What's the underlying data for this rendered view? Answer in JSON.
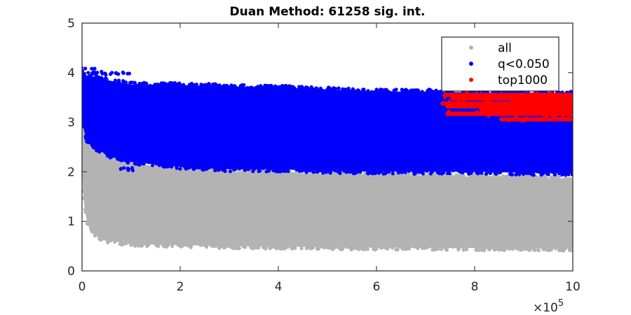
{
  "chart_data": {
    "type": "scatter",
    "title": "Duan Method: 61258 sig. int.",
    "xlabel": "",
    "ylabel": "",
    "x_exponent_label": "×10",
    "x_exponent_power": "5",
    "xlim": [
      0,
      10
    ],
    "ylim": [
      0,
      5
    ],
    "x_ticks": [
      "0",
      "2",
      "4",
      "6",
      "8",
      "10"
    ],
    "y_ticks": [
      "0",
      "1",
      "2",
      "3",
      "4",
      "5"
    ],
    "x_tick_values": [
      0,
      2,
      4,
      6,
      8,
      10
    ],
    "y_tick_values": [
      0,
      1,
      2,
      3,
      4,
      5
    ],
    "grid": false,
    "legend_position": "top-right",
    "series": [
      {
        "name": "all",
        "color": "#b3b3b3",
        "band": {
          "x": [
            0.0,
            0.02,
            0.05,
            0.1,
            0.2,
            0.3,
            0.5,
            0.8,
            1.0,
            1.5,
            2.0,
            3.0,
            4.0,
            5.0,
            6.0,
            7.0,
            8.0,
            9.0,
            10.0
          ],
          "lower": [
            2.1,
            1.6,
            1.3,
            1.0,
            0.8,
            0.7,
            0.62,
            0.57,
            0.55,
            0.53,
            0.52,
            0.5,
            0.49,
            0.48,
            0.47,
            0.47,
            0.46,
            0.46,
            0.45
          ],
          "upper": [
            3.8,
            3.4,
            3.0,
            2.7,
            2.55,
            2.45,
            2.35,
            2.25,
            2.2,
            2.1,
            2.05,
            2.0,
            1.98,
            1.96,
            1.94,
            1.92,
            1.9,
            1.88,
            1.86
          ]
        }
      },
      {
        "name": "q<0.050",
        "color": "#0000ff",
        "band": {
          "x": [
            0.0,
            0.05,
            0.1,
            0.3,
            0.5,
            0.8,
            1.0,
            1.5,
            2.0,
            3.0,
            4.0,
            5.0,
            6.0,
            7.0,
            8.0,
            9.0,
            10.0
          ],
          "lower": [
            3.0,
            2.8,
            2.6,
            2.45,
            2.35,
            2.25,
            2.2,
            2.15,
            2.1,
            2.05,
            2.05,
            2.02,
            2.0,
            2.0,
            2.0,
            1.98,
            1.98
          ],
          "upper": [
            4.05,
            3.95,
            3.9,
            3.9,
            3.85,
            3.8,
            3.76,
            3.75,
            3.75,
            3.72,
            3.7,
            3.66,
            3.62,
            3.62,
            3.6,
            3.6,
            3.58
          ]
        },
        "outliers": [
          [
            0.05,
            4.08
          ],
          [
            0.2,
            4.0
          ],
          [
            0.4,
            3.98
          ],
          [
            0.8,
            3.98
          ],
          [
            1.3,
            2.3
          ],
          [
            2.0,
            2.2
          ],
          [
            2.4,
            2.4
          ],
          [
            3.2,
            2.2
          ],
          [
            4.1,
            2.15
          ],
          [
            4.7,
            2.05
          ],
          [
            5.6,
            2.08
          ],
          [
            6.2,
            2.1
          ],
          [
            1.0,
            2.05
          ]
        ]
      },
      {
        "name": "top1000",
        "color": "#ff0000",
        "stripes": [
          {
            "x0": 7.35,
            "x1": 10.0,
            "y": 3.55
          },
          {
            "x0": 7.5,
            "x1": 10.0,
            "y": 3.48
          },
          {
            "x0": 8.8,
            "x1": 10.0,
            "y": 3.42
          },
          {
            "x0": 7.3,
            "x1": 10.0,
            "y": 3.38
          },
          {
            "x0": 7.4,
            "x1": 10.0,
            "y": 3.32
          },
          {
            "x0": 8.1,
            "x1": 10.0,
            "y": 3.25
          },
          {
            "x0": 7.4,
            "x1": 10.0,
            "y": 3.17
          },
          {
            "x0": 8.5,
            "x1": 10.0,
            "y": 3.06
          }
        ]
      }
    ],
    "legend": [
      {
        "label": "all",
        "color": "#b3b3b3"
      },
      {
        "label": "q<0.050",
        "color": "#0000ff"
      },
      {
        "label": "top1000",
        "color": "#ff0000"
      }
    ]
  }
}
